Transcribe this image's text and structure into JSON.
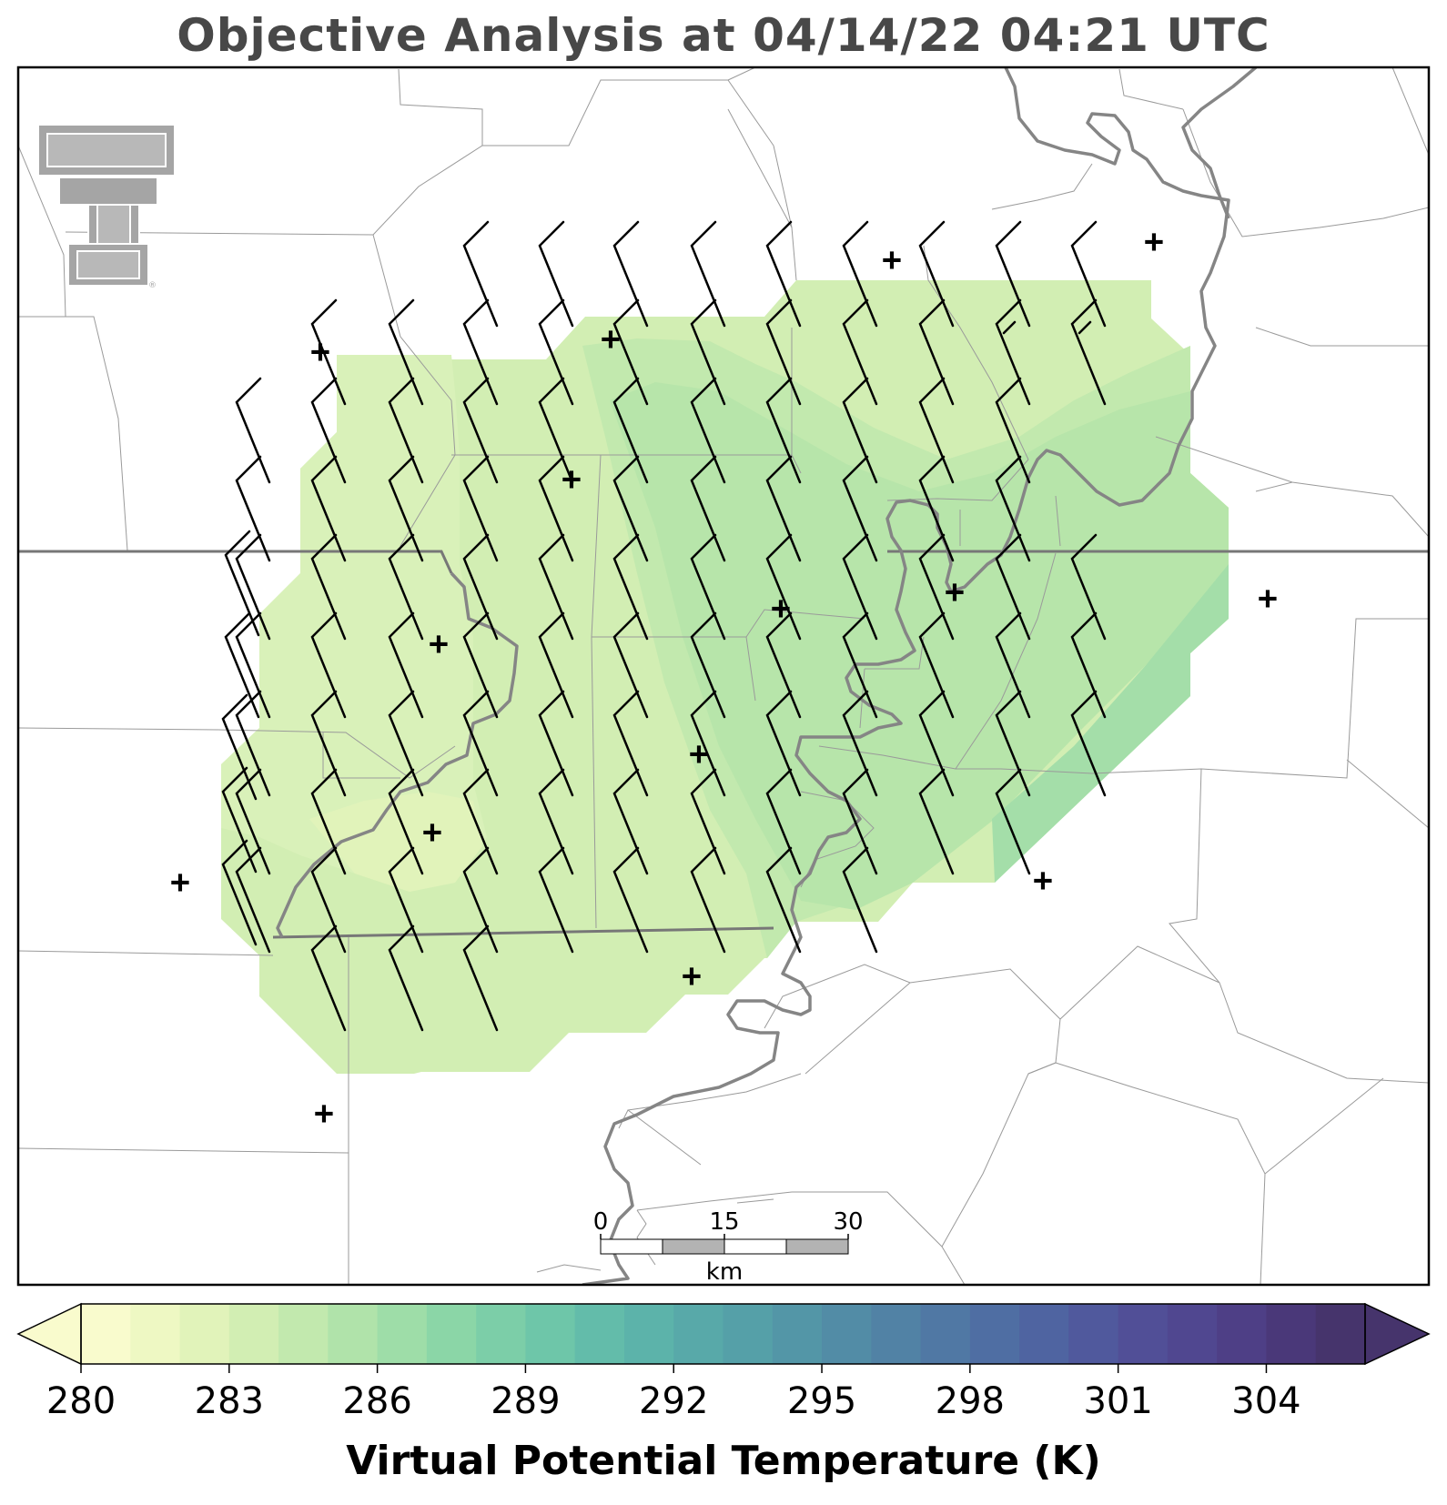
{
  "title": "Objective Analysis at 04/14/22 04:21 UTC",
  "colorbar": {
    "label": "Virtual Potential Temperature (K)",
    "min": 280,
    "max": 306,
    "step": 1,
    "ticks": [
      280,
      283,
      286,
      289,
      292,
      295,
      298,
      301,
      304
    ],
    "colors": [
      "#f9fbcd",
      "#eef8c3",
      "#e1f3ba",
      "#d2eeb3",
      "#c2e9ae",
      "#b0e3aa",
      "#9edda8",
      "#8bd6a7",
      "#7ccea8",
      "#6ec6a9",
      "#63bcaa",
      "#5cb3aa",
      "#58a9a9",
      "#55a0a8",
      "#5396a7",
      "#528ca6",
      "#5182a5",
      "#5078a4",
      "#4f6ea3",
      "#4f64a1",
      "#50599d",
      "#514f97",
      "#504790",
      "#4e3f86",
      "#4a3879",
      "#46346c"
    ]
  },
  "scale_bar": {
    "ticks": [
      "0",
      "15",
      "30"
    ],
    "unit": "km"
  },
  "station_markers": [
    "+",
    "+",
    "+",
    "+",
    "+",
    "+",
    "+",
    "+",
    "+",
    "+",
    "+",
    "+",
    "+",
    "+",
    "+",
    "+",
    "+"
  ],
  "wind_field": {
    "description_units": "knots",
    "barb_count": 152
  },
  "field_analysis": {
    "variable": "Virtual Potential Temperature",
    "units": "K",
    "regions": [
      {
        "level_min": 282,
        "level_max": 283
      },
      {
        "level_min": 283,
        "level_max": 284
      },
      {
        "level_min": 284,
        "level_max": 285
      },
      {
        "level_min": 285,
        "level_max": 286
      },
      {
        "level_min": 286,
        "level_max": 287
      }
    ]
  },
  "logo": "texas-tech-double-t"
}
